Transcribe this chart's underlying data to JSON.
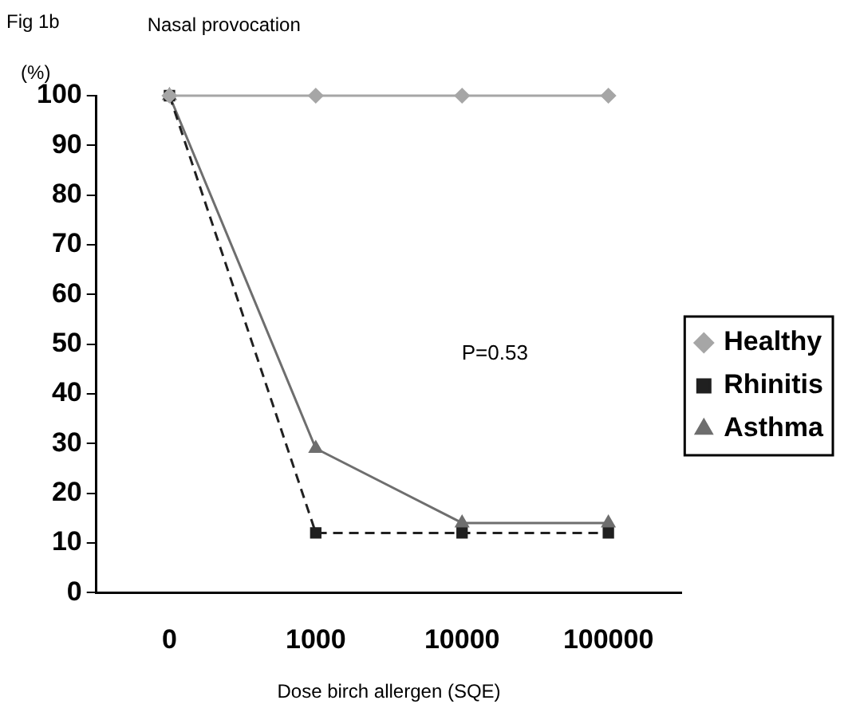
{
  "chart_data": {
    "type": "line",
    "title": "Nasal provocation",
    "ylabel": "(%)",
    "xlabel": "Dose birch allergen (SQE)",
    "annotations": [
      "Fig 1b",
      "P=0.53"
    ],
    "categories": [
      "0",
      "1000",
      "10000",
      "100000"
    ],
    "series": [
      {
        "name": "Healthy",
        "color": "#a6a6a6",
        "values": [
          100,
          100,
          100,
          100
        ],
        "marker": "diamond",
        "line_style": "solid"
      },
      {
        "name": "Rhinitis",
        "color": "#202020",
        "values": [
          100,
          12,
          12,
          12
        ],
        "marker": "square",
        "line_style": "dashed"
      },
      {
        "name": "Asthma",
        "color": "#6e6e6e",
        "values": [
          100,
          29,
          14,
          14
        ],
        "marker": "triangle",
        "line_style": "solid"
      }
    ],
    "ylim": [
      0,
      100
    ],
    "yticks": [
      0,
      10,
      20,
      30,
      40,
      50,
      60,
      70,
      80,
      90,
      100
    ],
    "grid": false,
    "legend": "right"
  }
}
